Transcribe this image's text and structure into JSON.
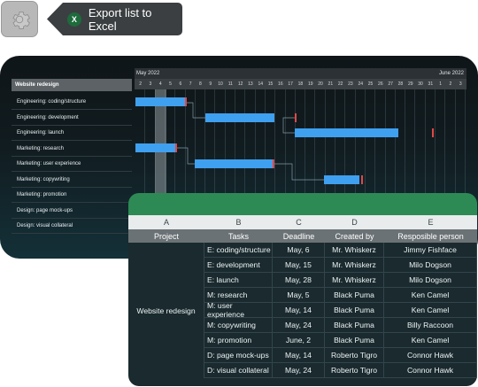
{
  "toolbar": {
    "export_label": "Export list to Excel",
    "excel_icon_letter": "X"
  },
  "gantt": {
    "project_label": "Website redesign",
    "month_start": "May 2022",
    "month_end": "June 2022",
    "days": [
      "2",
      "3",
      "4",
      "5",
      "6",
      "7",
      "8",
      "9",
      "10",
      "11",
      "12",
      "13",
      "14",
      "15",
      "16",
      "17",
      "18",
      "19",
      "20",
      "21",
      "22",
      "23",
      "24",
      "25",
      "26",
      "27",
      "28",
      "29",
      "30",
      "31",
      "1",
      "2",
      "3"
    ],
    "tasks": [
      "Engineering: coding/structure",
      "Engineering: development",
      "Engineering: launch",
      "Marketing: research",
      "Marketing: user experience",
      "Marketing: copywriting",
      "Marketing: promotion",
      "Design: page mock-ups",
      "Design: visual collateral"
    ]
  },
  "table": {
    "column_letters": [
      "A",
      "B",
      "C",
      "D",
      "E"
    ],
    "headers": [
      "Project",
      "Tasks",
      "Deadline",
      "Created by",
      "Resposible person"
    ],
    "project": "Website redesign",
    "rows": [
      {
        "task": "E: coding/structure",
        "deadline": "May, 6",
        "created_by": "Mr. Whiskerz",
        "responsible": "Jimmy Fishface"
      },
      {
        "task": "E: development",
        "deadline": "May, 15",
        "created_by": "Mr. Whiskerz",
        "responsible": "Milo Dogson"
      },
      {
        "task": "E: launch",
        "deadline": "May, 28",
        "created_by": "Mr. Whiskerz",
        "responsible": "Milo Dogson"
      },
      {
        "task": "M: research",
        "deadline": "May, 5",
        "created_by": "Black Puma",
        "responsible": "Ken Camel"
      },
      {
        "task": "M: user experience",
        "deadline": "May, 14",
        "created_by": "Black Puma",
        "responsible": "Ken Camel"
      },
      {
        "task": "M: copywriting",
        "deadline": "May, 24",
        "created_by": "Black Puma",
        "responsible": "Billy Raccoon"
      },
      {
        "task": "M: promotion",
        "deadline": "June, 2",
        "created_by": "Black Puma",
        "responsible": "Ken Camel"
      },
      {
        "task": "D: page mock-ups",
        "deadline": "May, 14",
        "created_by": "Roberto Tigro",
        "responsible": "Connor Hawk"
      },
      {
        "task": "D: visual collateral",
        "deadline": "May, 24",
        "created_by": "Roberto Tigro",
        "responsible": "Connor Hawk"
      }
    ]
  }
}
